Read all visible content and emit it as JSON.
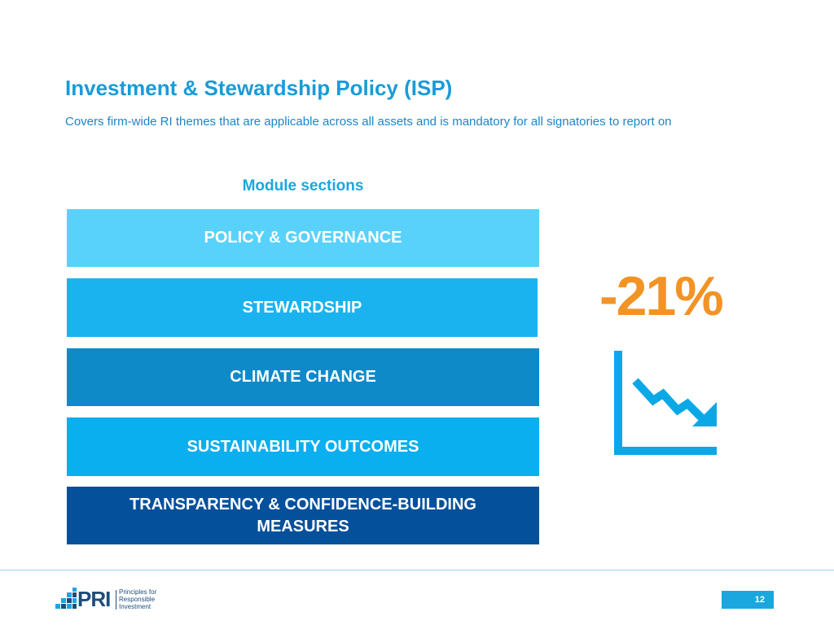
{
  "slide": {
    "title": "Investment & Stewardship Policy (ISP)",
    "subtitle": "Covers firm-wide RI themes that are applicable across all assets and is mandatory for all signatories to report on",
    "module_heading": "Module sections",
    "sections": [
      {
        "label": "POLICY & GOVERNANCE",
        "color": "#59d2fb"
      },
      {
        "label": "STEWARDSHIP",
        "color": "#1bb3ef"
      },
      {
        "label": "CLIMATE CHANGE",
        "color": "#0e8ac8"
      },
      {
        "label": "SUSTAINABILITY OUTCOMES",
        "color": "#09afee"
      },
      {
        "label": "TRANSPARENCY & CONFIDENCE-BUILDING MEASURES",
        "color": "#05509a"
      }
    ],
    "stat": {
      "value": "-21%",
      "color": "#f29325"
    },
    "trend_icon": "decline-chart-icon"
  },
  "footer": {
    "logo_text": "PRI",
    "logo_tagline": [
      "Principles for",
      "Responsible",
      "Investment"
    ],
    "page_number": "12"
  },
  "colors": {
    "brand_blue": "#1a9bd7",
    "accent_blue": "#1aa7e0",
    "navy": "#1f4d7a",
    "orange": "#f29325"
  }
}
